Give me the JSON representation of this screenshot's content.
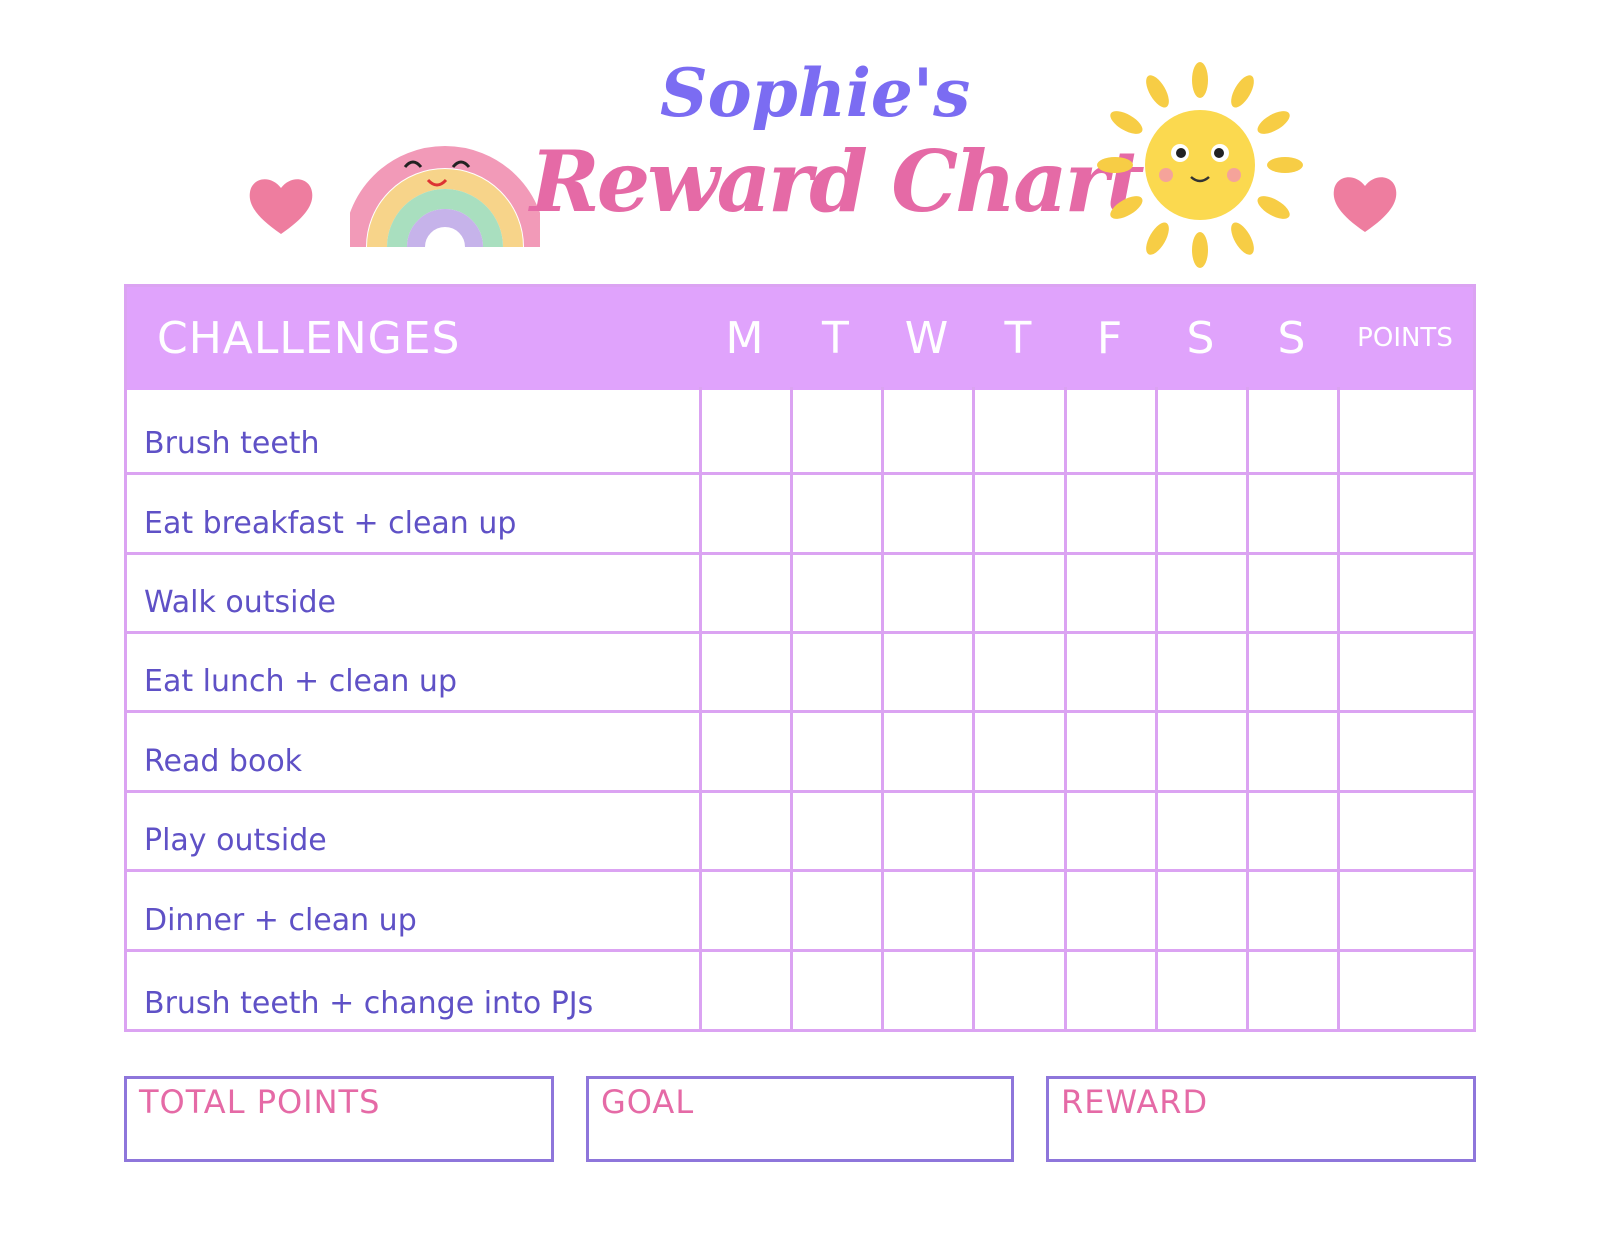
{
  "title": {
    "name": "Sophie's",
    "subtitle": "Reward Chart"
  },
  "colors": {
    "header": "#e0a3fc",
    "grid": "#dba3f2",
    "task_text": "#5f51c6",
    "title_purple": "#7b6cf2",
    "title_pink": "#e56aa6",
    "footer_border": "#8e76db"
  },
  "decorations": [
    "heart-icon",
    "rainbow-icon",
    "sun-icon",
    "heart-icon"
  ],
  "table": {
    "header": {
      "challenges": "CHALLENGES",
      "days": [
        "M",
        "T",
        "W",
        "T",
        "F",
        "S",
        "S"
      ],
      "points": "POINTS"
    },
    "rows": [
      "Brush teeth",
      "Eat breakfast + clean up",
      "Walk outside",
      "Eat lunch + clean up",
      "Read book",
      "Play outside",
      "Dinner + clean up",
      "Brush teeth + change into PJs"
    ]
  },
  "footer": {
    "total_points": "TOTAL POINTS",
    "goal": "GOAL",
    "reward": "REWARD"
  }
}
